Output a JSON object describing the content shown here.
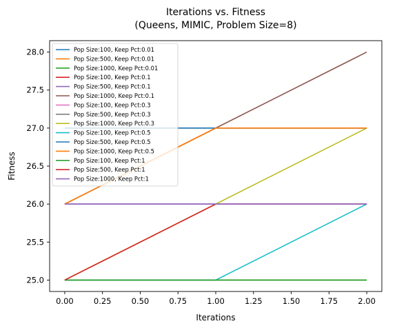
{
  "chart_data": {
    "type": "line",
    "title": "Iterations vs. Fitness\n(Queens, MIMIC, Problem Size=8)",
    "title_lines": [
      "Iterations vs. Fitness",
      "(Queens, MIMIC, Problem Size=8)"
    ],
    "xlabel": "Iterations",
    "ylabel": "Fitness",
    "xlim": [
      -0.1,
      2.1
    ],
    "ylim": [
      24.85,
      28.15
    ],
    "xticks": [
      0.0,
      0.25,
      0.5,
      0.75,
      1.0,
      1.25,
      1.5,
      1.75,
      2.0
    ],
    "xtick_labels": [
      "0.00",
      "0.25",
      "0.50",
      "0.75",
      "1.00",
      "1.25",
      "1.50",
      "1.75",
      "2.00"
    ],
    "yticks": [
      25.0,
      25.5,
      26.0,
      26.5,
      27.0,
      27.5,
      28.0
    ],
    "ytick_labels": [
      "25.0",
      "25.5",
      "26.0",
      "26.5",
      "27.0",
      "27.5",
      "28.0"
    ],
    "grid": false,
    "legend_position": "top-left",
    "x": [
      0,
      1,
      2
    ],
    "series": [
      {
        "name": "Pop Size:100, Keep Pct:0.01",
        "color": "#1f77b4",
        "values": [
          26,
          26,
          26
        ]
      },
      {
        "name": "Pop Size:500, Keep Pct:0.01",
        "color": "#ff7f0e",
        "values": [
          26,
          27,
          27
        ]
      },
      {
        "name": "Pop Size:1000, Keep Pct:0.01",
        "color": "#2ca02c",
        "values": [
          25,
          25,
          25
        ]
      },
      {
        "name": "Pop Size:100, Keep Pct:0.1",
        "color": "#d62728",
        "values": [
          25,
          26,
          26
        ]
      },
      {
        "name": "Pop Size:500, Keep Pct:0.1",
        "color": "#9467bd",
        "values": [
          26,
          26,
          26
        ]
      },
      {
        "name": "Pop Size:1000, Keep Pct:0.1",
        "color": "#8c564b",
        "values": [
          26,
          27,
          28
        ]
      },
      {
        "name": "Pop Size:100, Keep Pct:0.3",
        "color": "#e377c2",
        "values": [
          26,
          26,
          26
        ]
      },
      {
        "name": "Pop Size:500, Keep Pct:0.3",
        "color": "#7f7f7f",
        "values": [
          27,
          27,
          27
        ]
      },
      {
        "name": "Pop Size:1000, Keep Pct:0.3",
        "color": "#bcbd22",
        "values": [
          25,
          26,
          27
        ]
      },
      {
        "name": "Pop Size:100, Keep Pct:0.5",
        "color": "#17becf",
        "values": [
          25,
          25,
          26
        ]
      },
      {
        "name": "Pop Size:500, Keep Pct:0.5",
        "color": "#1f77b4",
        "values": [
          27,
          27,
          27
        ]
      },
      {
        "name": "Pop Size:1000, Keep Pct:0.5",
        "color": "#ff7f0e",
        "values": [
          26,
          27,
          27
        ]
      },
      {
        "name": "Pop Size:100, Keep Pct:1",
        "color": "#2ca02c",
        "values": [
          25,
          25,
          25
        ]
      },
      {
        "name": "Pop Size:500, Keep Pct:1",
        "color": "#d62728",
        "values": [
          25,
          26,
          26
        ]
      },
      {
        "name": "Pop Size:1000, Keep Pct:1",
        "color": "#9467bd",
        "values": [
          26,
          26,
          26
        ]
      }
    ]
  }
}
